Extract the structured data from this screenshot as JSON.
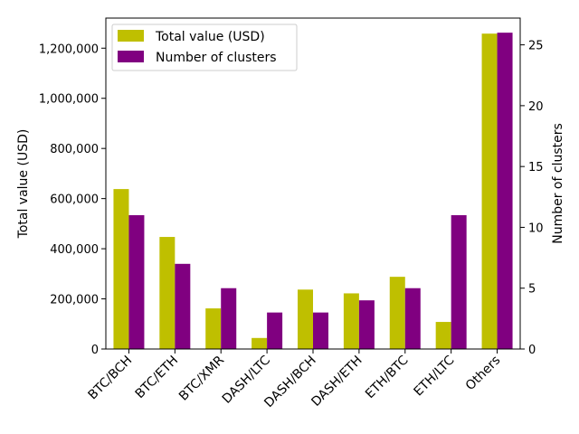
{
  "chart_data": {
    "type": "bar",
    "categories": [
      "BTC/BCH",
      "BTC/ETH",
      "BTC/XMR",
      "DASH/LTC",
      "DASH/BCH",
      "DASH/ETH",
      "ETH/BTC",
      "ETH/LTC",
      "Others"
    ],
    "series": [
      {
        "name": "Total value (USD)",
        "axis": "left",
        "color": "#bfbf00",
        "values": [
          638000,
          447000,
          162000,
          44000,
          237000,
          222000,
          288000,
          108000,
          1258000
        ]
      },
      {
        "name": "Number of clusters",
        "axis": "right",
        "color": "#800080",
        "values": [
          11,
          7,
          5,
          3,
          3,
          4,
          5,
          11,
          26
        ]
      }
    ],
    "ylabel": "Total value (USD)",
    "ylabel_right": "Number of clusters",
    "ylim": [
      0,
      1320000
    ],
    "ylim_right": [
      0,
      27.2
    ],
    "yticks": [
      {
        "value": 0,
        "label": "0"
      },
      {
        "value": 200000,
        "label": "200,000"
      },
      {
        "value": 400000,
        "label": "400,000"
      },
      {
        "value": 600000,
        "label": "600,000"
      },
      {
        "value": 800000,
        "label": "800,000"
      },
      {
        "value": 1000000,
        "label": "1,000,000"
      },
      {
        "value": 1200000,
        "label": "1,200,000"
      }
    ],
    "yticks_right": [
      {
        "value": 0,
        "label": "0"
      },
      {
        "value": 5,
        "label": "5"
      },
      {
        "value": 10,
        "label": "10"
      },
      {
        "value": 15,
        "label": "15"
      },
      {
        "value": 20,
        "label": "20"
      },
      {
        "value": 25,
        "label": "25"
      }
    ],
    "legend_position": "top-left",
    "grid": false
  }
}
